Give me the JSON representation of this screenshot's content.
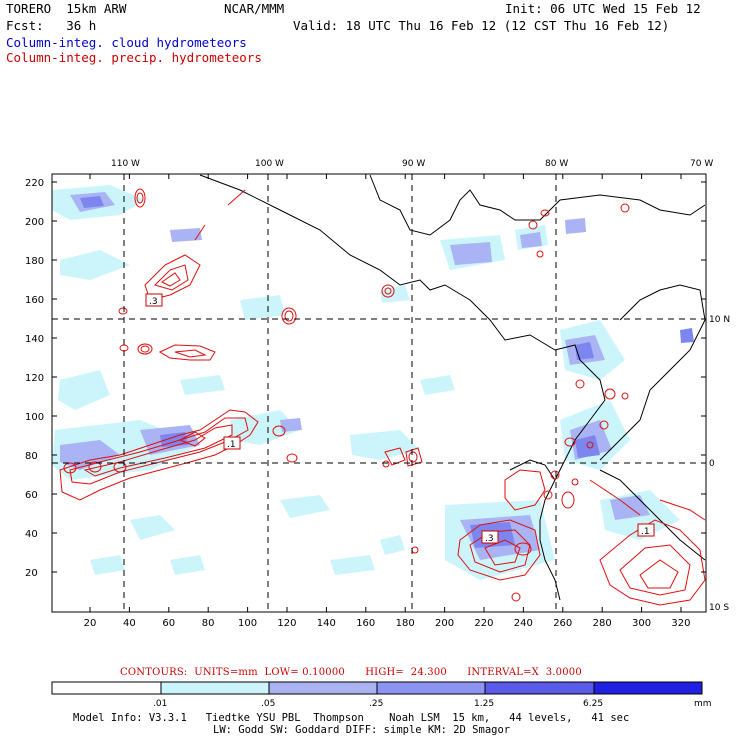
{
  "header": {
    "model": "TORERO  15km ARW",
    "org": "NCAR/MMM",
    "init": "Init: 06 UTC Wed 15 Feb 12",
    "fcst": "Fcst:   36 h",
    "valid": "Valid: 18 UTC Thu 16 Feb 12 (12 CST Thu 16 Feb 12)",
    "legend_cloud": "Column-integ. cloud hydrometeors",
    "legend_precip": "Column-integ. precip. hydrometeors"
  },
  "map": {
    "lon_labels": [
      "110 W",
      "100 W",
      "90 W",
      "80 W",
      "70 W"
    ],
    "lat_labels": [
      "10 N",
      "0",
      "10 S"
    ],
    "y_ticks": [
      "220",
      "200",
      "180",
      "160",
      "140",
      "120",
      "100",
      "80",
      "60",
      "40",
      "20"
    ],
    "x_ticks": [
      "20",
      "40",
      "60",
      "80",
      "100",
      "120",
      "140",
      "160",
      "180",
      "200",
      "220",
      "240",
      "260",
      "280",
      "300",
      "320"
    ],
    "contour_labels": [
      ".3",
      ".1",
      ".3",
      ".1"
    ],
    "colors": {
      "cloud_light": "#ccf5fb",
      "cloud_mid": "#aab4f5",
      "cloud_dark": "#7c86ee",
      "precip": "#dd1010",
      "coast": "#000000"
    }
  },
  "contours_line": "CONTOURS:  UNITS=mm  LOW= 0.10000      HIGH=  24.300      INTERVAL=X  3.0000",
  "colorbar": {
    "unit": "mm",
    "labels": [
      ".01",
      ".05",
      ".25",
      "1.25",
      "6.25"
    ],
    "colors": [
      "#ffffff",
      "#ccf5fb",
      "#aab4f5",
      "#8c93f0",
      "#5a5ae8",
      "#2020e0"
    ]
  },
  "footer": {
    "line1": "Model Info: V3.3.1   Tiedtke YSU PBL  Thompson    Noah LSM  15 km,   44 levels,   41 sec",
    "line2": "LW: Godd SW: Goddard DIFF: simple KM: 2D Smagor"
  }
}
